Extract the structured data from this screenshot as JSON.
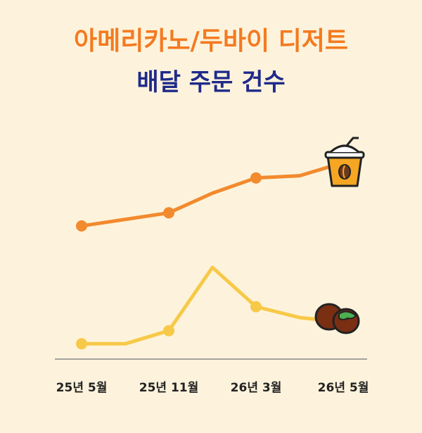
{
  "chart_data": {
    "type": "line",
    "title": "아메리카노/두바이 디저트",
    "subtitle": "배달 주문 건수",
    "categories": [
      "25년 5월",
      null,
      "25년 11월",
      null,
      "26년 3월",
      null,
      "26년 5월"
    ],
    "series": [
      {
        "color": "#f28a2e",
        "values": [
          61,
          64,
          67,
          76,
          83,
          84,
          90
        ]
      },
      {
        "color": "#f7c948",
        "values": [
          7,
          7,
          13,
          42,
          24,
          19,
          17
        ]
      }
    ],
    "ylim": [
      0,
      100
    ]
  }
}
